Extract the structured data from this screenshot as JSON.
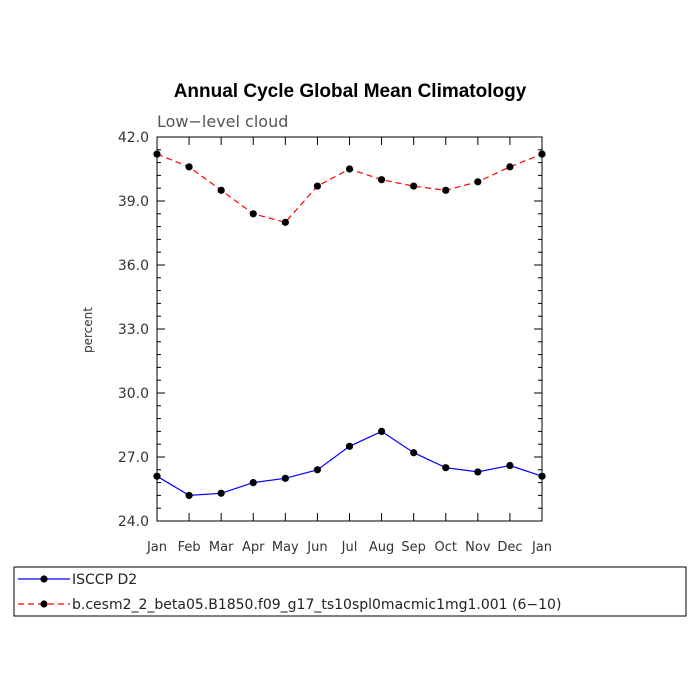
{
  "chart_data": {
    "type": "line",
    "title": "Annual Cycle Global Mean Climatology",
    "subtitle": "Low−level cloud",
    "ylabel": "percent",
    "xlabel": "",
    "categories": [
      "Jan",
      "Feb",
      "Mar",
      "Apr",
      "May",
      "Jun",
      "Jul",
      "Aug",
      "Sep",
      "Oct",
      "Nov",
      "Dec",
      "Jan"
    ],
    "ylim": [
      24.0,
      42.0
    ],
    "yticks": [
      "24.0",
      "27.0",
      "30.0",
      "33.0",
      "36.0",
      "39.0",
      "42.0"
    ],
    "grid": false,
    "legend_position": "bottom",
    "series": [
      {
        "name": "ISCCP D2",
        "color": "#0000ff",
        "dash": "solid",
        "values": [
          26.1,
          25.2,
          25.3,
          25.8,
          26.0,
          26.4,
          27.5,
          28.2,
          27.2,
          26.5,
          26.3,
          26.6,
          26.1
        ]
      },
      {
        "name": "b.cesm2_2_beta05.B1850.f09_g17_ts10spl0macmic1mg1.001 (6−10)",
        "color": "#ff0000",
        "dash": "dashed",
        "values": [
          41.2,
          40.6,
          39.5,
          38.4,
          38.0,
          39.7,
          40.5,
          40.0,
          39.7,
          39.5,
          39.9,
          40.6,
          41.2
        ]
      }
    ]
  }
}
